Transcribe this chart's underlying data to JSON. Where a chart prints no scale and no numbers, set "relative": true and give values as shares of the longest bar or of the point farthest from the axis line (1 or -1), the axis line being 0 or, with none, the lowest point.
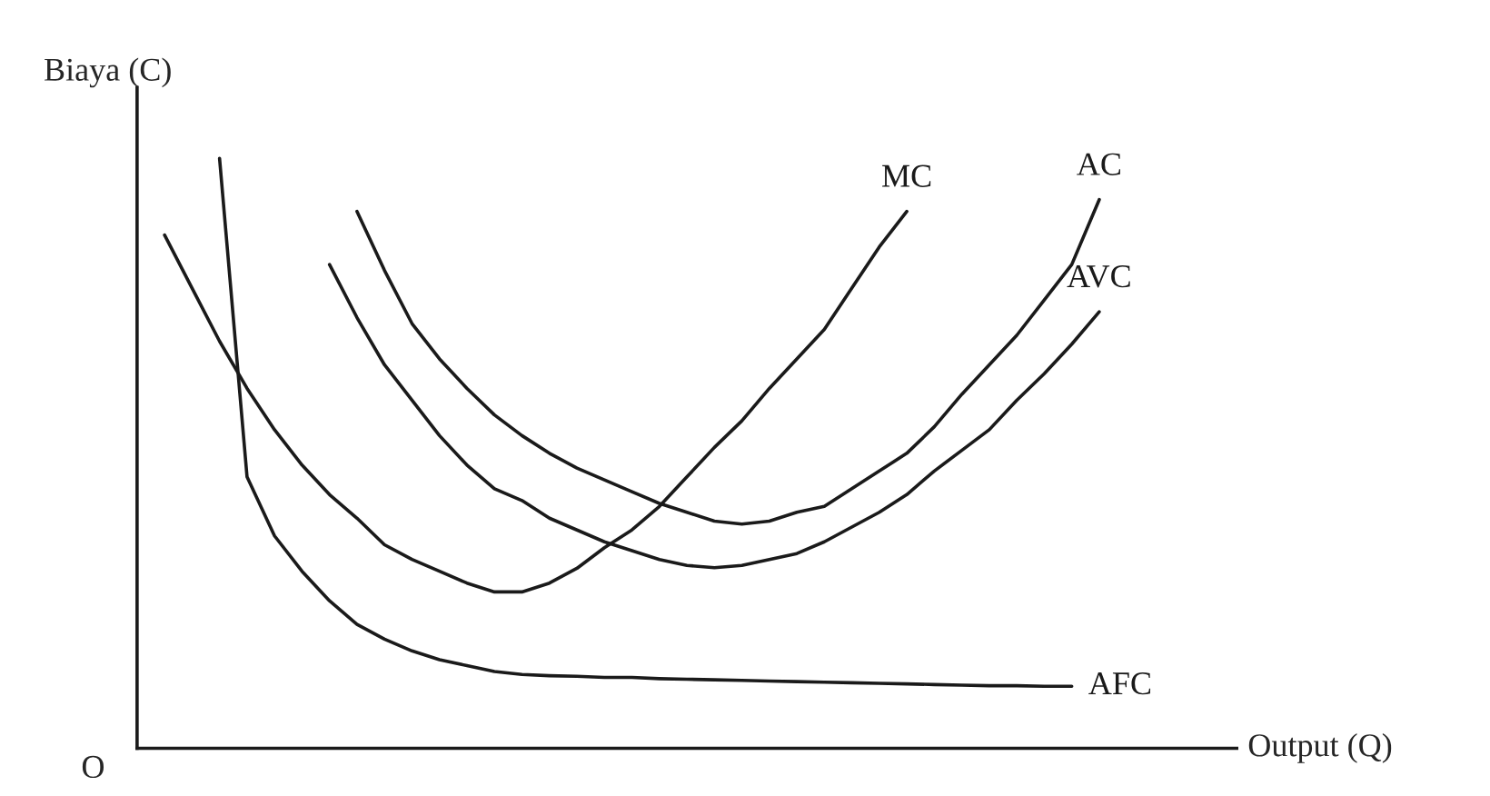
{
  "chart_data": {
    "type": "line",
    "relative": true,
    "xlabel": "Output (Q)",
    "ylabel": "Biaya (C)",
    "annotations": [
      "O"
    ],
    "legend": false,
    "marker": "none",
    "line_style": "solid",
    "tick_labels": false,
    "categories": [
      null,
      null,
      null,
      null,
      null,
      null,
      null,
      null,
      null,
      null,
      null,
      null,
      null,
      null,
      null,
      null,
      null,
      null,
      null,
      null,
      null,
      null,
      null,
      null,
      null,
      null,
      null,
      null,
      null,
      null,
      null,
      null,
      null,
      null,
      null,
      null,
      null,
      null,
      null,
      null,
      null
    ],
    "series": [
      {
        "name": "MC",
        "color": "#1a1a1a",
        "values": [
          null,
          0.87,
          0.78,
          0.69,
          0.61,
          0.54,
          0.48,
          0.43,
          0.39,
          0.345,
          0.32,
          0.3,
          0.28,
          0.265,
          0.265,
          0.28,
          0.305,
          0.34,
          0.37,
          0.41,
          0.46,
          0.51,
          0.555,
          0.61,
          0.66,
          0.71,
          0.78,
          0.85,
          0.91,
          null,
          null,
          null,
          null,
          null,
          null,
          null,
          null,
          null,
          null,
          null,
          null
        ]
      },
      {
        "name": "AC",
        "color": "#1a1a1a",
        "values": [
          null,
          null,
          null,
          null,
          null,
          null,
          null,
          null,
          0.91,
          0.81,
          0.72,
          0.66,
          0.61,
          0.565,
          0.53,
          0.5,
          0.475,
          0.455,
          0.435,
          0.415,
          0.4,
          0.385,
          0.38,
          0.385,
          0.4,
          0.41,
          0.44,
          0.47,
          0.5,
          0.545,
          0.6,
          0.65,
          0.7,
          0.76,
          0.82,
          0.93,
          null,
          null,
          null,
          null,
          null
        ]
      },
      {
        "name": "AVC",
        "color": "#1a1a1a",
        "values": [
          null,
          null,
          null,
          null,
          null,
          null,
          null,
          0.82,
          0.73,
          0.65,
          0.59,
          0.53,
          0.48,
          0.44,
          0.42,
          0.39,
          0.37,
          0.35,
          0.335,
          0.32,
          0.31,
          0.306,
          0.31,
          0.32,
          0.33,
          0.35,
          0.375,
          0.4,
          0.43,
          0.47,
          0.505,
          0.54,
          0.59,
          0.635,
          0.685,
          0.74,
          null,
          null,
          null,
          null,
          null
        ]
      },
      {
        "name": "AFC",
        "color": "#1a1a1a",
        "values": [
          null,
          null,
          null,
          1.0,
          0.46,
          0.36,
          0.3,
          0.25,
          0.21,
          0.185,
          0.165,
          0.15,
          0.14,
          0.13,
          0.125,
          0.123,
          0.122,
          0.12,
          0.12,
          0.118,
          0.117,
          0.116,
          0.115,
          0.114,
          0.113,
          0.112,
          0.111,
          0.11,
          0.109,
          0.108,
          0.107,
          0.106,
          0.106,
          0.105,
          0.105,
          null,
          null,
          null,
          null,
          null,
          null
        ]
      }
    ]
  }
}
